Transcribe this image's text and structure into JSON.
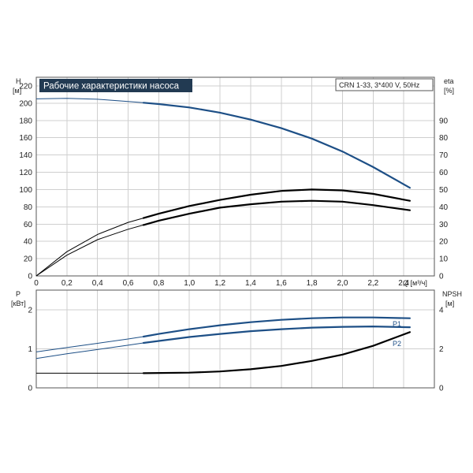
{
  "chart_data": [
    {
      "type": "line",
      "title": "Рабочие характеристики насоса",
      "subtitle": "CRN 1-33, 3*400 V, 50Hz",
      "ylabel_left": "H",
      "ylabel_left_unit": "[м]",
      "ylabel_right": "eta",
      "ylabel_right_unit": "[%]",
      "xlabel": "Q [м³/ч]",
      "xlim": [
        0,
        2.6
      ],
      "ylim_left": [
        0,
        230
      ],
      "ylim_right": [
        0,
        115
      ],
      "grid": true,
      "x_ticks": [
        "0",
        "0,2",
        "0,4",
        "0,6",
        "0,8",
        "1,0",
        "1,2",
        "1,4",
        "1,6",
        "1,8",
        "2,0",
        "2,2",
        "2,4"
      ],
      "y_left_ticks": [
        "0",
        "20",
        "40",
        "60",
        "80",
        "100",
        "120",
        "140",
        "160",
        "180",
        "200",
        "220"
      ],
      "y_right_ticks": [
        "0",
        "10",
        "20",
        "30",
        "40",
        "50",
        "60",
        "70",
        "80",
        "90"
      ],
      "series": [
        {
          "axis": "left",
          "color": "#1d4f86",
          "x": [
            0,
            0.2,
            0.4,
            0.6,
            0.7,
            0.8,
            1.0,
            1.2,
            1.4,
            1.6,
            1.8,
            2.0,
            2.2,
            2.44
          ],
          "values": [
            205,
            205.5,
            204.5,
            202,
            200.5,
            199,
            195,
            189,
            181,
            171,
            159,
            144,
            126,
            102
          ]
        },
        {
          "axis": "right",
          "color": "#000000",
          "x": [
            0,
            0.2,
            0.4,
            0.6,
            0.7,
            0.8,
            1.0,
            1.2,
            1.4,
            1.6,
            1.8,
            2.0,
            2.2,
            2.44
          ],
          "values": [
            0,
            14,
            24,
            31,
            33.5,
            36,
            40.5,
            44,
            47,
            49.2,
            50,
            49.5,
            47.5,
            43.5
          ]
        },
        {
          "axis": "right",
          "color": "#000000",
          "x": [
            0,
            0.2,
            0.4,
            0.6,
            0.7,
            0.8,
            1.0,
            1.2,
            1.4,
            1.6,
            1.8,
            2.0,
            2.2,
            2.44
          ],
          "values": [
            0,
            12,
            21,
            27,
            29.5,
            32,
            36,
            39.5,
            41.5,
            43,
            43.5,
            43,
            41,
            38
          ]
        }
      ]
    },
    {
      "type": "line",
      "ylabel_left": "P",
      "ylabel_left_unit": "[кВт]",
      "ylabel_right": "NPSH",
      "ylabel_right_unit": "[м]",
      "xlim": [
        0,
        2.6
      ],
      "ylim_left": [
        0,
        2.5
      ],
      "ylim_right": [
        0,
        5
      ],
      "grid": true,
      "y_left_ticks": [
        "0",
        "1",
        "2"
      ],
      "y_right_ticks": [
        "0",
        "2",
        "4"
      ],
      "series": [
        {
          "name": "P1",
          "axis": "left",
          "color": "#1d4f86",
          "x": [
            0,
            0.2,
            0.4,
            0.6,
            0.7,
            0.8,
            1.0,
            1.2,
            1.4,
            1.6,
            1.8,
            2.0,
            2.2,
            2.44
          ],
          "values": [
            0.92,
            1.03,
            1.14,
            1.25,
            1.31,
            1.38,
            1.5,
            1.6,
            1.68,
            1.74,
            1.78,
            1.8,
            1.8,
            1.78
          ]
        },
        {
          "name": "P2",
          "axis": "left",
          "color": "#1d4f86",
          "x": [
            0,
            0.2,
            0.4,
            0.6,
            0.7,
            0.8,
            1.0,
            1.2,
            1.4,
            1.6,
            1.8,
            2.0,
            2.2,
            2.44
          ],
          "values": [
            0.75,
            0.87,
            0.98,
            1.09,
            1.15,
            1.2,
            1.3,
            1.38,
            1.45,
            1.5,
            1.54,
            1.56,
            1.57,
            1.55
          ]
        },
        {
          "axis": "right",
          "color": "#000000",
          "x": [
            0,
            0.7,
            1.0,
            1.2,
            1.4,
            1.6,
            1.8,
            2.0,
            2.2,
            2.44
          ],
          "values": [
            0.75,
            0.75,
            0.78,
            0.84,
            0.95,
            1.12,
            1.38,
            1.7,
            2.15,
            2.85
          ]
        }
      ]
    }
  ]
}
